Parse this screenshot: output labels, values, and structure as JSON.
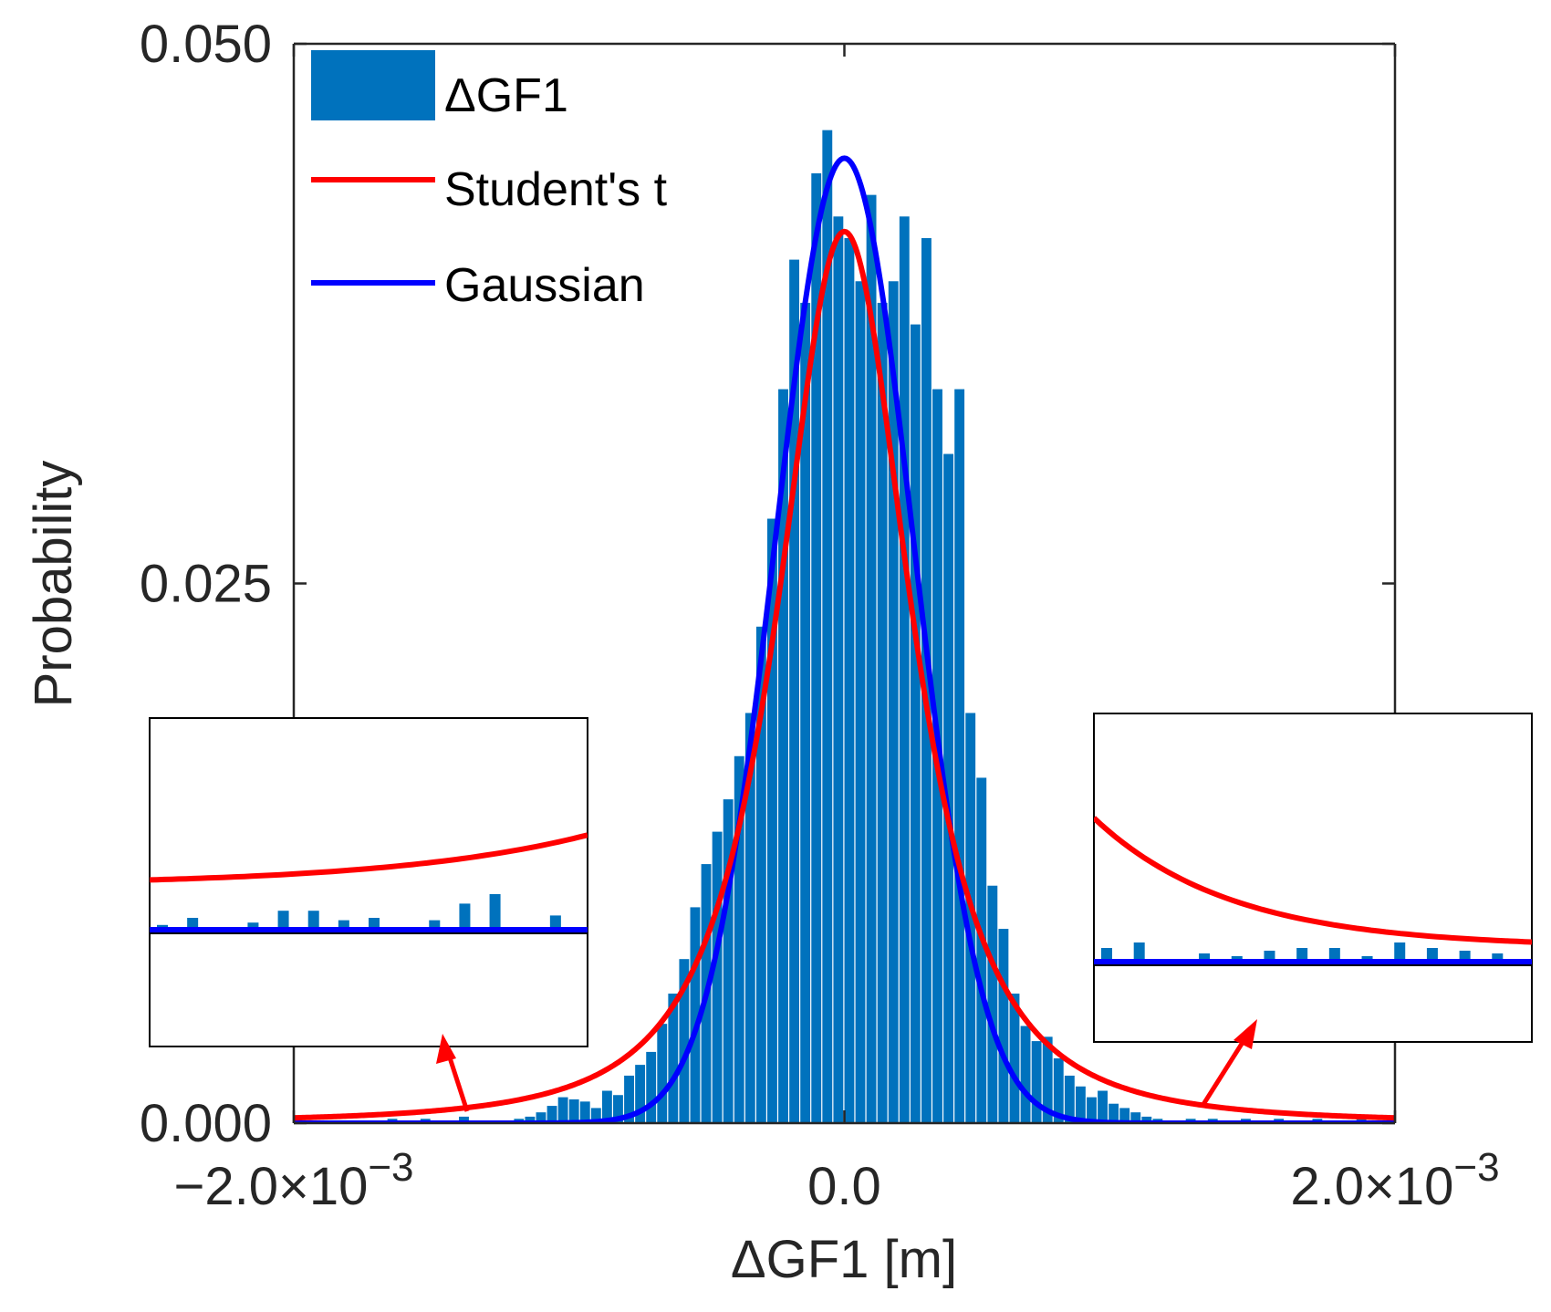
{
  "chart_data": {
    "type": "histogram",
    "title": "",
    "xlabel": "ΔGF1 [m]",
    "ylabel": "Probability",
    "xlim": [
      -0.002,
      0.002
    ],
    "ylim": [
      0,
      0.05
    ],
    "x_ticks": [
      {
        "value": -0.002,
        "mantissa": "−2.0",
        "times": "×",
        "base": "10",
        "exp": "−3"
      },
      {
        "value": 0.0,
        "mantissa": "0.0",
        "times": "",
        "base": "",
        "exp": ""
      },
      {
        "value": 0.002,
        "mantissa": "2.0",
        "times": "×",
        "base": "10",
        "exp": "−3"
      }
    ],
    "y_ticks": [
      {
        "value": 0.0,
        "label": "0.000"
      },
      {
        "value": 0.025,
        "label": "0.025"
      },
      {
        "value": 0.05,
        "label": "0.050"
      }
    ],
    "grid": false,
    "legend": {
      "location": "top-left",
      "entries": [
        {
          "label": "ΔGF1",
          "kind": "patch",
          "color": "#0072BD"
        },
        {
          "label": "Student's t",
          "kind": "line",
          "color": "#FF0000"
        },
        {
          "label": "Gaussian",
          "kind": "line",
          "color": "#0000FF"
        }
      ]
    },
    "histogram": {
      "name": "ΔGF1",
      "color": "#0072BD",
      "bin_width": 4e-05,
      "bin_centers": [
        -0.00118,
        -0.00114,
        -0.0011,
        -0.00106,
        -0.00102,
        -0.00098,
        -0.00094,
        -0.0009,
        -0.00086,
        -0.00082,
        -0.00078,
        -0.00074,
        -0.0007,
        -0.00066,
        -0.00062,
        -0.00058,
        -0.00054,
        -0.0005,
        -0.00046,
        -0.00042,
        -0.00038,
        -0.00034,
        -0.0003,
        -0.00026,
        -0.00022,
        -0.00018,
        -0.00014,
        -0.0001,
        -6e-05,
        -2e-05,
        2e-05,
        6e-05,
        0.0001,
        0.00014,
        0.00018,
        0.00022,
        0.00026,
        0.0003,
        0.00034,
        0.00038,
        0.00042,
        0.00046,
        0.0005,
        0.00054,
        0.00058,
        0.00062,
        0.00066,
        0.0007,
        0.00074,
        0.00078,
        0.00082,
        0.00086,
        0.0009,
        0.00094,
        0.00098,
        0.00102,
        0.00106,
        0.0011,
        0.00114,
        0.00118
      ],
      "values": [
        0.0002,
        0.0003,
        0.0005,
        0.0008,
        0.0012,
        0.0011,
        0.001,
        0.0007,
        0.0015,
        0.0013,
        0.0022,
        0.0027,
        0.0033,
        0.0046,
        0.006,
        0.0076,
        0.01,
        0.012,
        0.0135,
        0.015,
        0.017,
        0.019,
        0.023,
        0.028,
        0.034,
        0.04,
        0.038,
        0.044,
        0.046,
        0.042,
        0.041,
        0.039,
        0.043,
        0.038,
        0.039,
        0.042,
        0.037,
        0.041,
        0.034,
        0.031,
        0.034,
        0.019,
        0.016,
        0.011,
        0.009,
        0.006,
        0.0045,
        0.0038,
        0.004,
        0.003,
        0.0022,
        0.0017,
        0.0012,
        0.0015,
        0.0009,
        0.0007,
        0.0005,
        0.0003,
        0.0002,
        0.0001
      ],
      "sparse_tail_bins": [
        {
          "x": -0.00164,
          "value": 0.0002
        },
        {
          "x": -0.00152,
          "value": 0.0002
        },
        {
          "x": -0.00138,
          "value": 0.0003
        },
        {
          "x": -0.00128,
          "value": 0.0001
        },
        {
          "x": 0.00126,
          "value": 0.0002
        },
        {
          "x": 0.00134,
          "value": 0.0002
        },
        {
          "x": 0.00146,
          "value": 0.0002
        },
        {
          "x": 0.00158,
          "value": 0.0002
        },
        {
          "x": 0.00172,
          "value": 0.0002
        },
        {
          "x": 0.00188,
          "value": 0.0003
        }
      ]
    },
    "series": [
      {
        "name": "Student's t",
        "color": "#FF0000",
        "peak": 0.0413,
        "location": 0.0,
        "scale": 0.00026,
        "dof": 2.0
      },
      {
        "name": "Gaussian",
        "color": "#0000FF",
        "peak": 0.0447,
        "mean": 0.0,
        "sigma": 0.00025
      }
    ],
    "insets": [
      {
        "name": "left-tail-zoom",
        "side": "left",
        "tail_bars": [
          0.04,
          0.1,
          0.02,
          0.06,
          0.16,
          0.16,
          0.08,
          0.1,
          0.02,
          0.08,
          0.22,
          0.3,
          0.02,
          0.12
        ],
        "student_t_from": 0.38,
        "student_t_to": 0.2,
        "gaussian_level": 0.0
      },
      {
        "name": "right-tail-zoom",
        "side": "right",
        "tail_bars": [
          0.1,
          0.14,
          0.02,
          0.06,
          0.04,
          0.08,
          0.1,
          0.1,
          0.04,
          0.14,
          0.1,
          0.08,
          0.06
        ],
        "student_t_from": 0.5,
        "student_t_to": 0.05,
        "gaussian_level": 0.0
      }
    ]
  }
}
